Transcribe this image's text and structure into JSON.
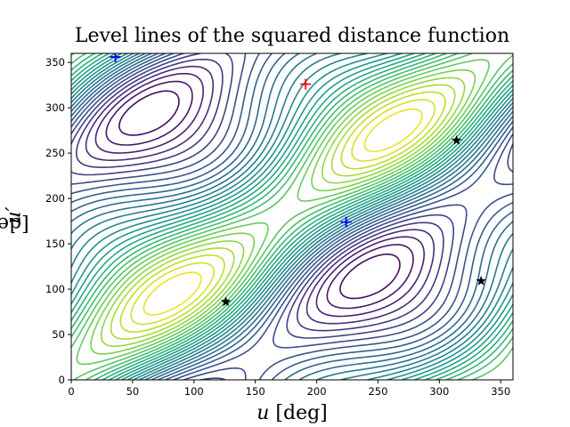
{
  "chart_data": {
    "type": "contour",
    "title": "Level lines of the squared distance function",
    "xlabel_var": "u",
    "xlabel_unit": "[deg]",
    "ylabel_var": "u′",
    "ylabel_unit": "[deg]",
    "xlim": [
      0,
      360
    ],
    "ylim": [
      0,
      360
    ],
    "xticks": [
      "0",
      "50",
      "100",
      "150",
      "200",
      "250",
      "300",
      "350"
    ],
    "xtick_values": [
      0,
      50,
      100,
      150,
      200,
      250,
      300,
      350
    ],
    "yticks": [
      "0",
      "50",
      "100",
      "150",
      "200",
      "250",
      "300",
      "350"
    ],
    "ytick_values": [
      0,
      50,
      100,
      150,
      200,
      250,
      300,
      350
    ],
    "colormap": "viridis",
    "grid": false,
    "markers": [
      {
        "kind": "plus",
        "color": "#0000ff",
        "x": 36,
        "y": 356
      },
      {
        "kind": "plus",
        "color": "#0000ff",
        "x": 224,
        "y": 174
      },
      {
        "kind": "plus",
        "color": "#ff0000",
        "x": 191,
        "y": 326
      },
      {
        "kind": "star",
        "color": "#000000",
        "x": 126,
        "y": 86
      },
      {
        "kind": "star",
        "color": "#000000",
        "x": 314,
        "y": 264
      },
      {
        "kind": "star",
        "color": "#000000",
        "x": 334,
        "y": 109
      }
    ]
  }
}
